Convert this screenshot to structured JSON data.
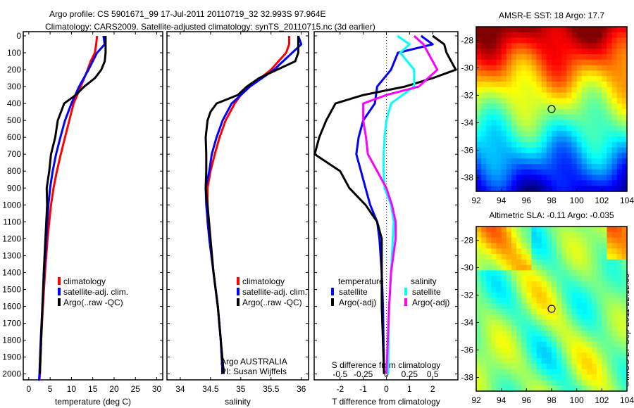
{
  "title_line1": "Argo profile: CS 5901671_99 17-Jul-2011 20110719_32 32.993S 97.964E",
  "title_line2": "Climatology: CARS2009. Satellite-adjusted climatology: synTS_20110715.nc (3d earlier)",
  "credit": "©IMOS 27-Sep-2011 22:12:09",
  "chart_data": [
    {
      "type": "line",
      "name": "temperature",
      "xlabel": "temperature (deg C)",
      "ylabel": "",
      "xlim": [
        -1.3,
        31.4
      ],
      "ylim": [
        2035,
        -25
      ],
      "xticks": [
        0,
        5,
        10,
        15,
        20,
        25,
        30
      ],
      "yticks": [
        0,
        100,
        200,
        300,
        400,
        500,
        600,
        700,
        800,
        900,
        1000,
        1100,
        1200,
        1300,
        1400,
        1500,
        1600,
        1700,
        1800,
        1900,
        2000
      ],
      "legend": [
        "climatology",
        "satellite-adj. clim.",
        "Argo(..raw -QC)"
      ],
      "series": [
        {
          "name": "climatology",
          "color": "#ff0000",
          "depth": [
            0,
            50,
            100,
            150,
            200,
            300,
            400,
            500,
            600,
            700,
            800,
            900,
            1000,
            1200,
            1400,
            1600,
            1800,
            2000,
            2040
          ],
          "values": [
            16,
            15.8,
            15.5,
            14.5,
            13.8,
            12.2,
            10.5,
            9.5,
            8.5,
            7.5,
            6.6,
            5.8,
            5.2,
            4.4,
            3.8,
            3.3,
            2.9,
            2.6,
            2.5
          ]
        },
        {
          "name": "satellite-adj. clim.",
          "color": "#0000ff",
          "depth": [
            0,
            50,
            100,
            200,
            300,
            400,
            500,
            600,
            700,
            800,
            900,
            1000,
            1200,
            1400,
            1600,
            1800,
            2000,
            2040
          ],
          "values": [
            17.5,
            17.8,
            16,
            14,
            11.8,
            10,
            8.5,
            7.4,
            6.4,
            5.6,
            5,
            4.6,
            4.1,
            3.6,
            3.2,
            2.8,
            2.5,
            2.4
          ]
        },
        {
          "name": "Argo(..raw -QC)",
          "color": "#000000",
          "depth": [
            0,
            100,
            150,
            200,
            250,
            300,
            350,
            400,
            500,
            600,
            700,
            800,
            900,
            1000,
            1200,
            1400,
            1600,
            1800,
            2000
          ],
          "values": [
            18,
            18,
            17.8,
            17,
            15.5,
            13,
            11,
            8.3,
            6.8,
            6.2,
            5.2,
            4.8,
            4.2,
            4.3,
            3.9,
            3.5,
            3.2,
            2.9,
            2.6
          ]
        }
      ]
    },
    {
      "type": "line",
      "name": "salinity",
      "xlabel": "salinity",
      "xlim": [
        33.78,
        36.12
      ],
      "ylim": [
        2035,
        -25
      ],
      "xticks": [
        34,
        34.5,
        35,
        35.5,
        36
      ],
      "legend": [
        "climatology",
        "satellite-adj. clim.",
        "Argo(..raw -QC)"
      ],
      "annotations": [
        "Argo AUSTRALIA",
        "PI: Susan Wijffels"
      ],
      "series": [
        {
          "name": "climatology",
          "color": "#ff0000",
          "depth": [
            0,
            50,
            100,
            200,
            300,
            350,
            400,
            500,
            600,
            700,
            800,
            900,
            1000,
            1100,
            1200,
            1400,
            1600,
            1800,
            2000
          ],
          "values": [
            35.8,
            35.8,
            35.75,
            35.5,
            35.15,
            35,
            34.9,
            34.75,
            34.65,
            34.57,
            34.5,
            34.45,
            34.45,
            34.45,
            34.48,
            34.55,
            34.62,
            34.67,
            34.7
          ]
        },
        {
          "name": "satellite-adj. clim.",
          "color": "#0000ff",
          "depth": [
            0,
            50,
            100,
            200,
            300,
            400,
            500,
            600,
            700,
            800,
            900,
            1000,
            1200,
            1400,
            1600,
            1800,
            2000
          ],
          "values": [
            35.95,
            36.0,
            35.85,
            35.55,
            35.15,
            34.85,
            34.7,
            34.6,
            34.52,
            34.48,
            34.42,
            34.43,
            34.48,
            34.55,
            34.62,
            34.67,
            34.7
          ]
        },
        {
          "name": "Argo(..raw -QC)",
          "color": "#000000",
          "depth": [
            0,
            100,
            150,
            200,
            250,
            300,
            350,
            400,
            450,
            500,
            600,
            700,
            800,
            900,
            1000,
            1200,
            1400,
            1600,
            1800,
            2000
          ],
          "values": [
            35.95,
            35.95,
            35.9,
            35.6,
            35.3,
            35.1,
            34.95,
            34.6,
            34.5,
            34.45,
            34.42,
            34.43,
            34.43,
            34.42,
            34.45,
            34.5,
            34.55,
            34.62,
            34.67,
            34.72
          ]
        }
      ]
    },
    {
      "type": "line",
      "name": "differences",
      "xlabel": "T difference from climatology",
      "xlabel2": "S difference from climatology",
      "xlim": [
        -3.12,
        3.09
      ],
      "ylim": [
        2035,
        -25
      ],
      "xticks": [
        -2,
        -1,
        0,
        1,
        2
      ],
      "xticks2": [
        -0.5,
        -0.25,
        0,
        0.25,
        0.5
      ],
      "xticks2_labels": [
        "-0.5",
        "-0.25",
        "0",
        "0.25",
        "0.5"
      ],
      "legend_headers": [
        "temperature",
        "salinity"
      ],
      "legend": [
        "satellite",
        "Argo(-adj)",
        "satellite",
        "Argo(-adj)"
      ],
      "series": [
        {
          "name": "T satellite",
          "color": "#0000ff",
          "scale": 1,
          "depth": [
            0,
            50,
            100,
            200,
            300,
            400,
            500,
            600,
            700,
            800,
            900,
            1000,
            1100,
            1200,
            1400,
            1600,
            2000
          ],
          "values": [
            1.5,
            2,
            0.5,
            0.2,
            -0.4,
            -0.5,
            -1,
            -1.2,
            -1.3,
            -1.1,
            -0.9,
            -0.7,
            -0.4,
            -0.3,
            -0.2,
            -0.15,
            -0.1
          ]
        },
        {
          "name": "T Argo(-adj)",
          "color": "#000000",
          "scale": 1,
          "depth": [
            0,
            50,
            100,
            200,
            250,
            300,
            350,
            400,
            500,
            600,
            700,
            800,
            900,
            1000,
            1100,
            1200,
            1400,
            1600,
            2000
          ],
          "values": [
            2,
            2.5,
            2.6,
            3,
            2,
            0.8,
            -1,
            -2.2,
            -2.6,
            -2.9,
            -3.1,
            -2,
            -1.6,
            -0.9,
            -0.4,
            -0.2,
            -0.2,
            -0.2,
            -0.1
          ]
        },
        {
          "name": "S satellite",
          "color": "#00ffff",
          "scale": 4,
          "depth": [
            0,
            50,
            100,
            200,
            300,
            400,
            500,
            600,
            700,
            800,
            900,
            1000,
            1100,
            1200,
            1400,
            1600,
            2000
          ],
          "values": [
            0.12,
            0.25,
            0.15,
            0.3,
            0.3,
            0.05,
            0,
            -0.02,
            -0.03,
            -0.03,
            -0.02,
            0.05,
            0.08,
            0.07,
            0.05,
            0.03,
            0.02
          ]
        },
        {
          "name": "S Argo(-adj)",
          "color": "#ff00ff",
          "scale": 4,
          "depth": [
            0,
            50,
            100,
            200,
            300,
            350,
            400,
            500,
            600,
            700,
            800,
            900,
            1000,
            1100,
            1200,
            1400,
            1600,
            2000
          ],
          "values": [
            0.3,
            0.4,
            0.45,
            0.55,
            0.35,
            0,
            -0.25,
            -0.25,
            -0.22,
            -0.2,
            -0.1,
            0,
            0.06,
            0.1,
            0.1,
            0.05,
            0.03,
            0
          ]
        }
      ]
    },
    {
      "type": "heatmap",
      "name": "sst-map",
      "title": "AMSR-E SST: 18 Argo: 17.7",
      "xticks": [
        92,
        94,
        96,
        98,
        100,
        102,
        104
      ],
      "yticks": [
        -28,
        -30,
        -32,
        -34,
        -36,
        -38
      ],
      "xlim": [
        92,
        104
      ],
      "ylim": [
        -27,
        -39
      ],
      "marker": {
        "lon": 98,
        "lat": -33
      }
    },
    {
      "type": "heatmap",
      "name": "sla-map",
      "title": "Altimetric SLA: -0.11 Argo: -0.035",
      "xticks": [
        92,
        94,
        96,
        98,
        100,
        102,
        104
      ],
      "yticks": [
        -28,
        -30,
        -32,
        -34,
        -36,
        -38
      ],
      "xlim": [
        92,
        104
      ],
      "ylim": [
        -27,
        -39
      ],
      "marker": {
        "lon": 98,
        "lat": -33
      }
    }
  ]
}
